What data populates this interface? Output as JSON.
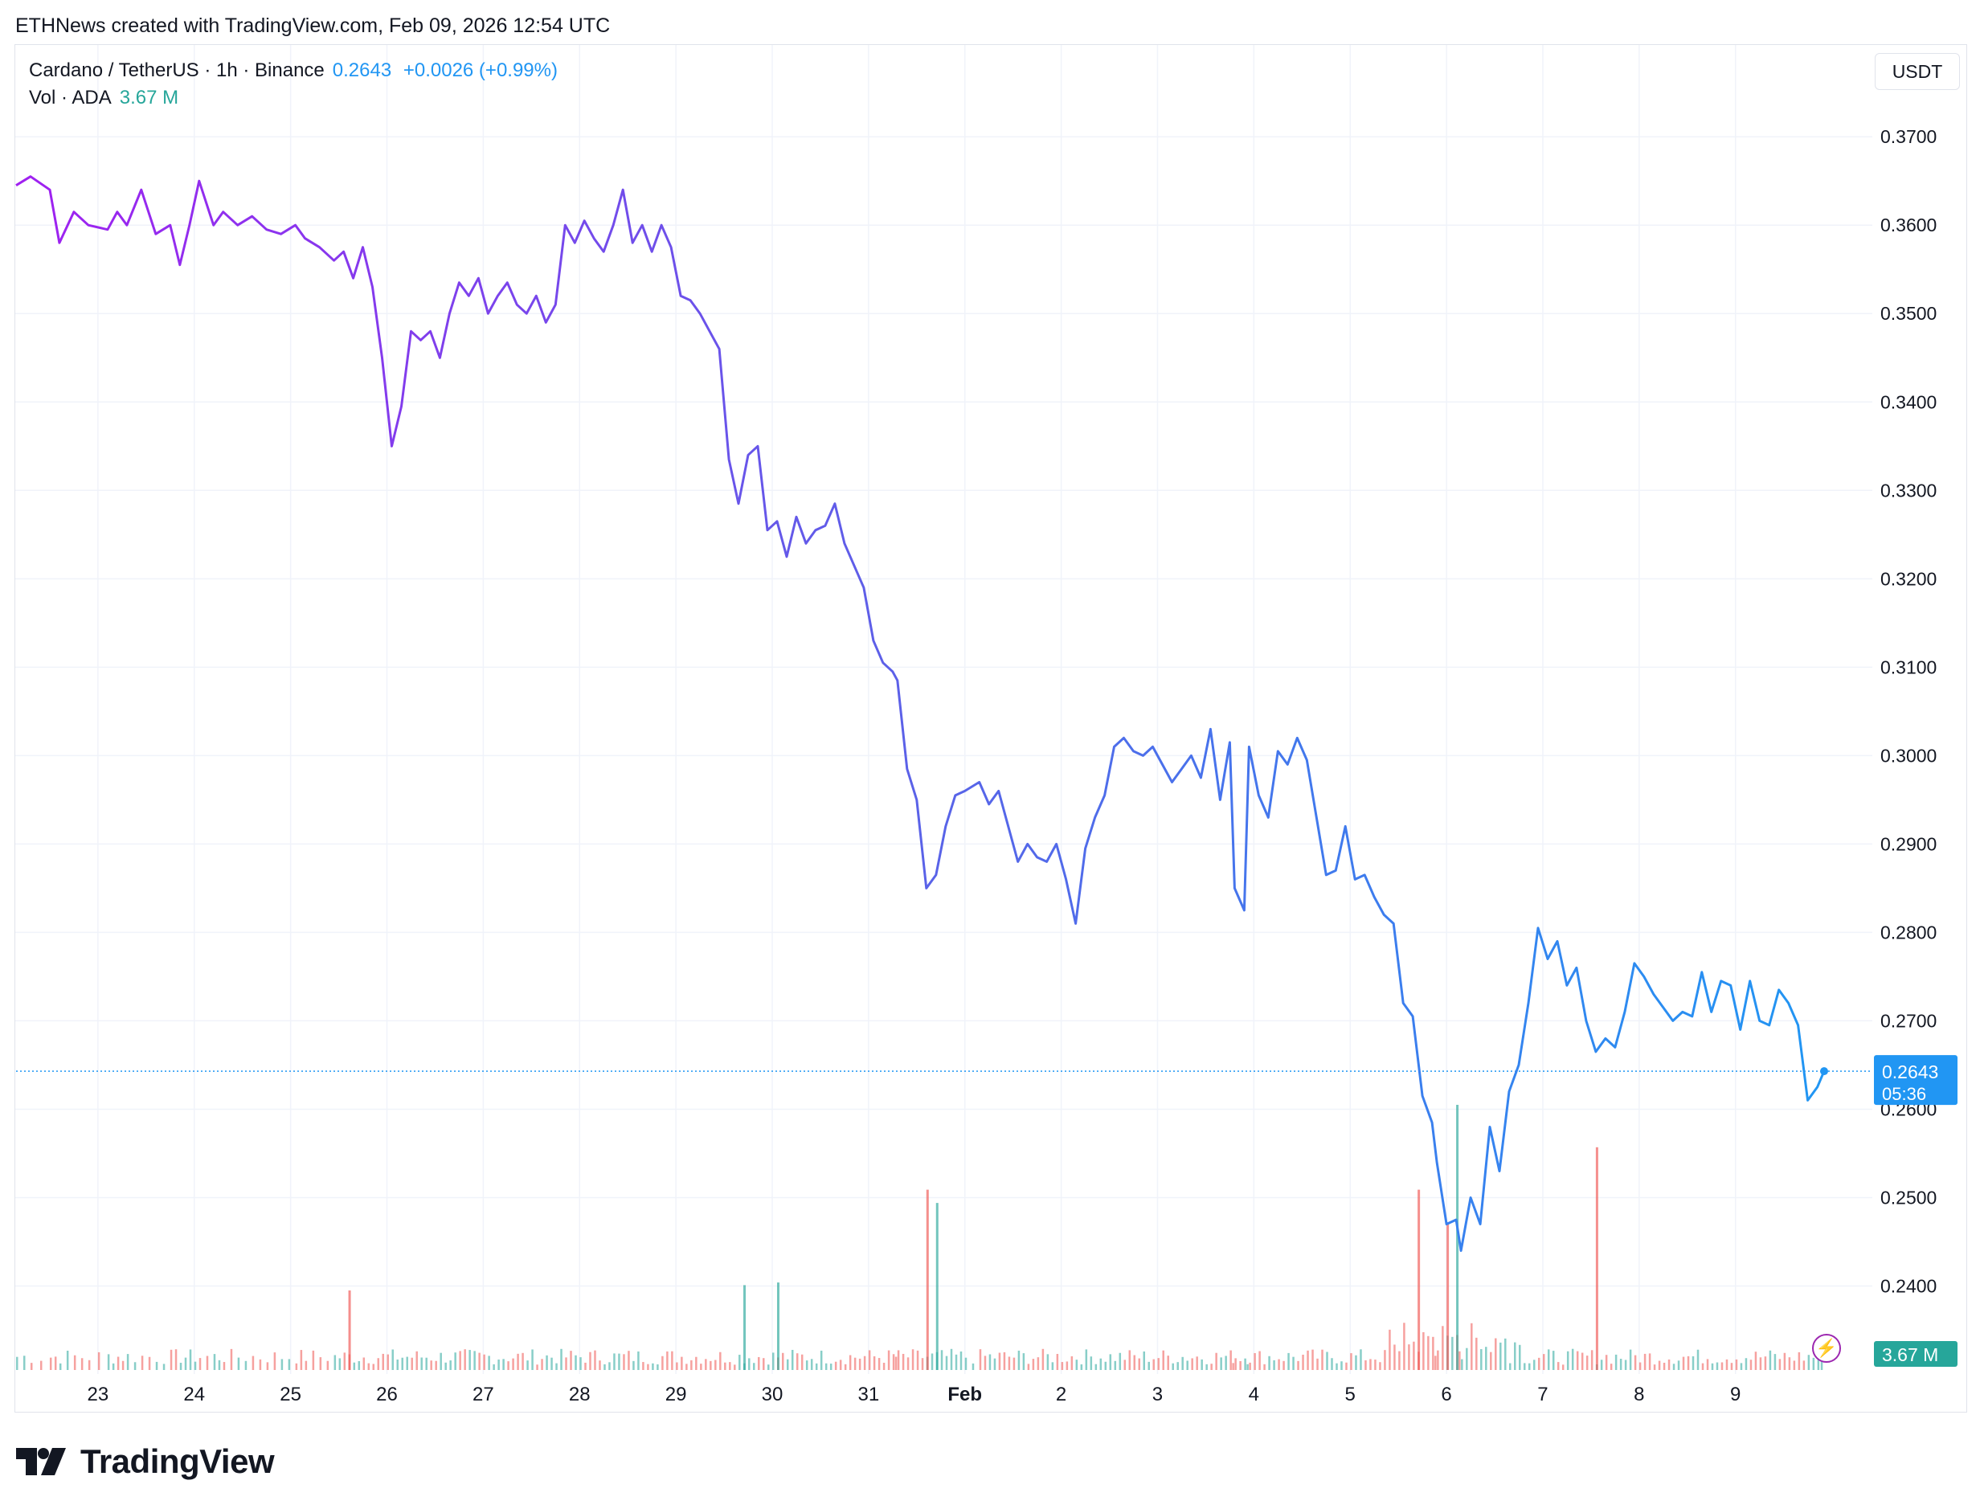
{
  "header": {
    "credit": "ETHNews created with TradingView.com, Feb 09, 2026 12:54 UTC"
  },
  "legend": {
    "symbol": "Cardano / TetherUS · 1h · Binance",
    "price": "0.2643",
    "change": "+0.0026 (+0.99%)",
    "volume_label": "Vol · ADA",
    "volume_value": "3.67 M"
  },
  "currency_button": "USDT",
  "price_badge": {
    "price": "0.2643",
    "countdown": "05:36"
  },
  "volume_badge": "3.67 M",
  "brand": {
    "name": "TradingView",
    "icon": "tradingview-logo-icon"
  },
  "colors": {
    "line_start": "#a020f0",
    "line_mid": "#5a62e8",
    "line_end": "#2196f3",
    "volume_up": "#26a69a",
    "volume_down": "#ef5350",
    "price_label": "#2196f3",
    "volume_label": "#26a69a"
  },
  "chart_data": {
    "type": "line",
    "title": "Cardano / TetherUS · 1h · Binance",
    "xlabel": "",
    "ylabel": "",
    "y_tick_labels": [
      "0.3700",
      "0.3600",
      "0.3500",
      "0.3400",
      "0.3300",
      "0.3200",
      "0.3100",
      "0.3000",
      "0.2900",
      "0.2800",
      "0.2700",
      "0.2600",
      "0.2500",
      "0.2400"
    ],
    "x_tick_labels": [
      "23",
      "24",
      "25",
      "26",
      "27",
      "28",
      "29",
      "30",
      "31",
      "Feb",
      "2",
      "3",
      "4",
      "5",
      "6",
      "7",
      "8",
      "9"
    ],
    "ylim": [
      0.2385,
      0.3712
    ],
    "x_range_days": [
      22.15,
      40.92
    ],
    "grid": true,
    "last_price": 0.2643,
    "series": [
      {
        "values_format": "[day, price]",
        "points": [
          [
            22.15,
            0.3645
          ],
          [
            22.3,
            0.3655
          ],
          [
            22.5,
            0.364
          ],
          [
            22.6,
            0.358
          ],
          [
            22.75,
            0.3615
          ],
          [
            22.9,
            0.36
          ],
          [
            23.1,
            0.3595
          ],
          [
            23.2,
            0.3615
          ],
          [
            23.3,
            0.36
          ],
          [
            23.45,
            0.364
          ],
          [
            23.6,
            0.359
          ],
          [
            23.75,
            0.36
          ],
          [
            23.85,
            0.3555
          ],
          [
            23.95,
            0.36
          ],
          [
            24.05,
            0.365
          ],
          [
            24.2,
            0.36
          ],
          [
            24.3,
            0.3615
          ],
          [
            24.45,
            0.36
          ],
          [
            24.6,
            0.361
          ],
          [
            24.75,
            0.3595
          ],
          [
            24.9,
            0.359
          ],
          [
            25.05,
            0.36
          ],
          [
            25.15,
            0.3585
          ],
          [
            25.3,
            0.3575
          ],
          [
            25.45,
            0.356
          ],
          [
            25.55,
            0.357
          ],
          [
            25.65,
            0.354
          ],
          [
            25.75,
            0.3575
          ],
          [
            25.85,
            0.353
          ],
          [
            25.95,
            0.345
          ],
          [
            26.05,
            0.335
          ],
          [
            26.15,
            0.3395
          ],
          [
            26.25,
            0.348
          ],
          [
            26.35,
            0.347
          ],
          [
            26.45,
            0.348
          ],
          [
            26.55,
            0.345
          ],
          [
            26.65,
            0.35
          ],
          [
            26.75,
            0.3535
          ],
          [
            26.85,
            0.352
          ],
          [
            26.95,
            0.354
          ],
          [
            27.05,
            0.35
          ],
          [
            27.15,
            0.352
          ],
          [
            27.25,
            0.3535
          ],
          [
            27.35,
            0.351
          ],
          [
            27.45,
            0.35
          ],
          [
            27.55,
            0.352
          ],
          [
            27.65,
            0.349
          ],
          [
            27.75,
            0.351
          ],
          [
            27.85,
            0.36
          ],
          [
            27.95,
            0.358
          ],
          [
            28.05,
            0.3605
          ],
          [
            28.15,
            0.3585
          ],
          [
            28.25,
            0.357
          ],
          [
            28.35,
            0.36
          ],
          [
            28.45,
            0.364
          ],
          [
            28.55,
            0.358
          ],
          [
            28.65,
            0.36
          ],
          [
            28.75,
            0.357
          ],
          [
            28.85,
            0.36
          ],
          [
            28.95,
            0.3575
          ],
          [
            29.05,
            0.352
          ],
          [
            29.15,
            0.3515
          ],
          [
            29.25,
            0.35
          ],
          [
            29.35,
            0.348
          ],
          [
            29.45,
            0.346
          ],
          [
            29.55,
            0.3335
          ],
          [
            29.65,
            0.3285
          ],
          [
            29.75,
            0.334
          ],
          [
            29.85,
            0.335
          ],
          [
            29.95,
            0.3255
          ],
          [
            30.05,
            0.3265
          ],
          [
            30.15,
            0.3225
          ],
          [
            30.25,
            0.327
          ],
          [
            30.35,
            0.324
          ],
          [
            30.45,
            0.3255
          ],
          [
            30.55,
            0.326
          ],
          [
            30.65,
            0.3285
          ],
          [
            30.75,
            0.324
          ],
          [
            30.85,
            0.3215
          ],
          [
            30.95,
            0.319
          ],
          [
            31.05,
            0.313
          ],
          [
            31.15,
            0.3105
          ],
          [
            31.25,
            0.3095
          ],
          [
            31.3,
            0.3085
          ],
          [
            31.4,
            0.2985
          ],
          [
            31.5,
            0.295
          ],
          [
            31.6,
            0.285
          ],
          [
            31.7,
            0.2865
          ],
          [
            31.8,
            0.292
          ],
          [
            31.9,
            0.2955
          ],
          [
            32.0,
            0.296
          ],
          [
            32.15,
            0.297
          ],
          [
            32.25,
            0.2945
          ],
          [
            32.35,
            0.296
          ],
          [
            32.45,
            0.292
          ],
          [
            32.55,
            0.288
          ],
          [
            32.65,
            0.29
          ],
          [
            32.75,
            0.2885
          ],
          [
            32.85,
            0.288
          ],
          [
            32.95,
            0.29
          ],
          [
            33.05,
            0.286
          ],
          [
            33.15,
            0.281
          ],
          [
            33.25,
            0.2895
          ],
          [
            33.35,
            0.293
          ],
          [
            33.45,
            0.2955
          ],
          [
            33.55,
            0.301
          ],
          [
            33.65,
            0.302
          ],
          [
            33.75,
            0.3005
          ],
          [
            33.85,
            0.3
          ],
          [
            33.95,
            0.301
          ],
          [
            34.05,
            0.299
          ],
          [
            34.15,
            0.297
          ],
          [
            34.25,
            0.2985
          ],
          [
            34.35,
            0.3
          ],
          [
            34.45,
            0.2975
          ],
          [
            34.55,
            0.303
          ],
          [
            34.65,
            0.295
          ],
          [
            34.75,
            0.3015
          ],
          [
            34.8,
            0.285
          ],
          [
            34.9,
            0.2825
          ],
          [
            34.95,
            0.301
          ],
          [
            35.05,
            0.2955
          ],
          [
            35.15,
            0.293
          ],
          [
            35.25,
            0.3005
          ],
          [
            35.35,
            0.299
          ],
          [
            35.45,
            0.302
          ],
          [
            35.55,
            0.2995
          ],
          [
            35.65,
            0.293
          ],
          [
            35.75,
            0.2865
          ],
          [
            35.85,
            0.287
          ],
          [
            35.95,
            0.292
          ],
          [
            36.05,
            0.286
          ],
          [
            36.15,
            0.2865
          ],
          [
            36.25,
            0.284
          ],
          [
            36.35,
            0.282
          ],
          [
            36.45,
            0.281
          ],
          [
            36.55,
            0.272
          ],
          [
            36.65,
            0.2705
          ],
          [
            36.75,
            0.2615
          ],
          [
            36.85,
            0.2585
          ],
          [
            36.9,
            0.254
          ],
          [
            37.0,
            0.247
          ],
          [
            37.1,
            0.2475
          ],
          [
            37.15,
            0.244
          ],
          [
            37.25,
            0.25
          ],
          [
            37.35,
            0.247
          ],
          [
            37.45,
            0.258
          ],
          [
            37.55,
            0.253
          ],
          [
            37.65,
            0.262
          ],
          [
            37.75,
            0.265
          ],
          [
            37.85,
            0.272
          ],
          [
            37.95,
            0.2805
          ],
          [
            38.05,
            0.277
          ],
          [
            38.15,
            0.279
          ],
          [
            38.25,
            0.274
          ],
          [
            38.35,
            0.276
          ],
          [
            38.45,
            0.27
          ],
          [
            38.55,
            0.2665
          ],
          [
            38.65,
            0.268
          ],
          [
            38.75,
            0.267
          ],
          [
            38.85,
            0.271
          ],
          [
            38.95,
            0.2765
          ],
          [
            39.05,
            0.275
          ],
          [
            39.15,
            0.273
          ],
          [
            39.25,
            0.2715
          ],
          [
            39.35,
            0.27
          ],
          [
            39.45,
            0.271
          ],
          [
            39.55,
            0.2705
          ],
          [
            39.65,
            0.2755
          ],
          [
            39.75,
            0.271
          ],
          [
            39.85,
            0.2745
          ],
          [
            39.95,
            0.274
          ],
          [
            40.05,
            0.269
          ],
          [
            40.15,
            0.2745
          ],
          [
            40.25,
            0.27
          ],
          [
            40.35,
            0.2695
          ],
          [
            40.45,
            0.2735
          ],
          [
            40.55,
            0.272
          ],
          [
            40.65,
            0.2695
          ],
          [
            40.75,
            0.261
          ],
          [
            40.85,
            0.2625
          ],
          [
            40.92,
            0.2643
          ]
        ]
      }
    ],
    "volume_spikes": [
      {
        "day": 25.6,
        "rel": 0.3
      },
      {
        "day": 29.7,
        "rel": 0.32
      },
      {
        "day": 30.05,
        "rel": 0.33
      },
      {
        "day": 31.6,
        "rel": 0.68
      },
      {
        "day": 31.7,
        "rel": 0.63
      },
      {
        "day": 36.7,
        "rel": 0.68
      },
      {
        "day": 37.0,
        "rel": 0.55
      },
      {
        "day": 37.1,
        "rel": 1.0
      },
      {
        "day": 38.55,
        "rel": 0.84
      }
    ]
  }
}
